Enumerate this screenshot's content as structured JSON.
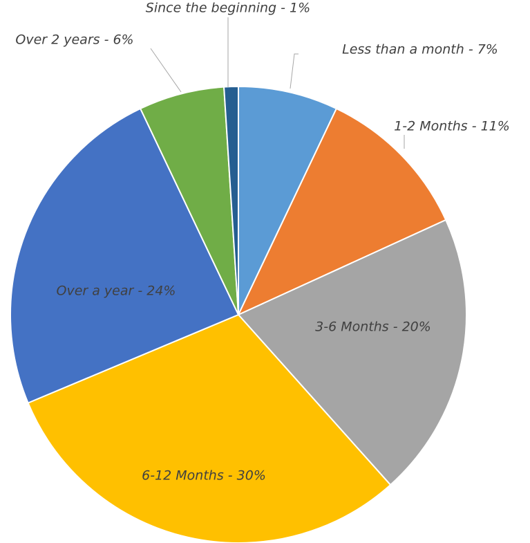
{
  "chart_data": {
    "type": "pie",
    "values": [
      7,
      11,
      20,
      30,
      24,
      6,
      1
    ],
    "value_labels": [
      "Less than a month - 7%",
      "1-2 Months - 11%",
      "3-6 Months - 20%",
      "6-12 Months - 30%",
      "Over a year - 24%",
      "Over 2 years - 6%",
      "Since the beginning - 1%"
    ],
    "colors": [
      "#5b9bd5",
      "#ed7d31",
      "#a5a5a5",
      "#ffc000",
      "#4472c4",
      "#70ad47",
      "#255e91"
    ]
  }
}
